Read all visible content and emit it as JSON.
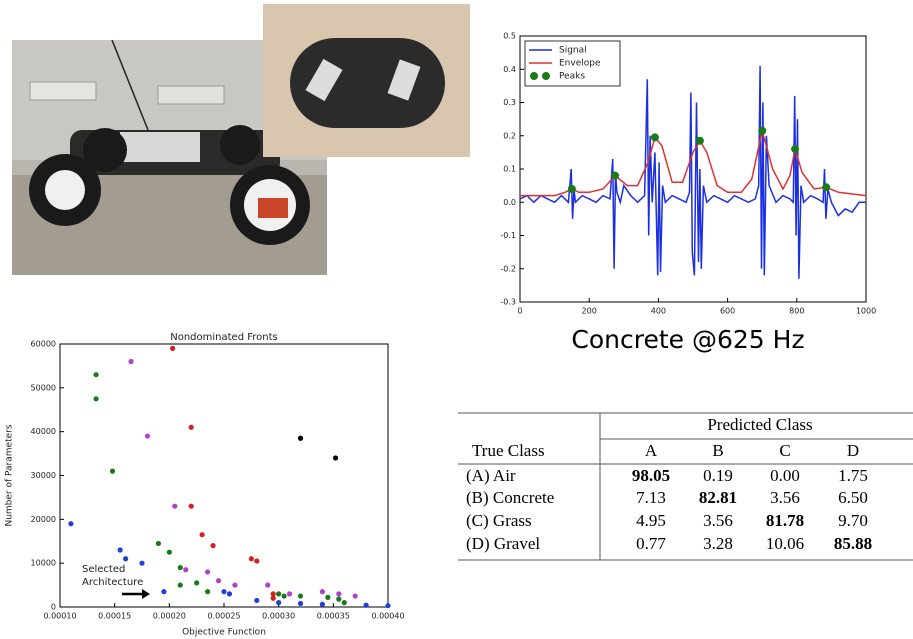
{
  "chart_data": [
    {
      "type": "line",
      "xlim": [
        0,
        1000
      ],
      "xticks": [
        0,
        200,
        400,
        600,
        800,
        1000
      ],
      "ylim": [
        -0.3,
        0.5
      ],
      "yticks": [
        -0.3,
        -0.2,
        -0.1,
        {
          "value": 0,
          "label": "0.0"
        },
        0.1,
        0.2,
        0.3,
        0.4,
        0.5
      ],
      "legend": "upper left",
      "series": [
        {
          "name": "Signal",
          "type": "line",
          "color": "#1c2fe0",
          "x": [
            0,
            20,
            40,
            60,
            80,
            100,
            120,
            140,
            148,
            152,
            156,
            160,
            180,
            200,
            220,
            240,
            260,
            268,
            272,
            276,
            280,
            290,
            300,
            320,
            340,
            360,
            368,
            372,
            376,
            382,
            390,
            398,
            402,
            406,
            412,
            420,
            440,
            460,
            480,
            490,
            494,
            498,
            504,
            510,
            516,
            520,
            524,
            530,
            540,
            560,
            580,
            600,
            620,
            640,
            660,
            680,
            690,
            694,
            698,
            702,
            706,
            712,
            720,
            740,
            760,
            780,
            790,
            794,
            798,
            802,
            806,
            812,
            820,
            840,
            860,
            876,
            880,
            884,
            890,
            900,
            920,
            940,
            960,
            980,
            1000
          ],
          "values": [
            0.01,
            0.02,
            0.0,
            0.02,
            0.01,
            0.0,
            0.02,
            0.0,
            0.1,
            -0.05,
            0.04,
            0.0,
            0.02,
            0.01,
            0.0,
            0.02,
            0.01,
            0.13,
            -0.2,
            0.09,
            0.03,
            0.0,
            0.05,
            0.02,
            0.0,
            0.02,
            0.37,
            -0.1,
            0.2,
            0.0,
            0.15,
            -0.22,
            0.12,
            -0.21,
            0.05,
            0.0,
            0.02,
            0.01,
            0.0,
            0.03,
            0.33,
            -0.15,
            -0.22,
            0.3,
            -0.18,
            0.1,
            -0.2,
            0.05,
            0.0,
            0.02,
            0.01,
            0.0,
            0.02,
            0.01,
            0.0,
            0.01,
            0.05,
            0.41,
            -0.2,
            0.3,
            -0.22,
            0.2,
            0.05,
            0.0,
            0.02,
            0.01,
            0.0,
            0.32,
            -0.1,
            0.25,
            -0.23,
            0.05,
            0.0,
            0.02,
            0.01,
            0.0,
            0.1,
            -0.05,
            0.04,
            0.0,
            -0.04,
            -0.02,
            -0.03,
            0.0,
            0.0
          ]
        },
        {
          "name": "Envelope",
          "type": "line",
          "color": "#e03030",
          "x": [
            0,
            50,
            100,
            130,
            150,
            170,
            200,
            240,
            275,
            310,
            340,
            370,
            390,
            410,
            440,
            470,
            500,
            520,
            540,
            570,
            600,
            640,
            670,
            700,
            730,
            760,
            780,
            795,
            815,
            850,
            885,
            920,
            1000
          ],
          "values": [
            0.02,
            0.02,
            0.02,
            0.03,
            0.04,
            0.03,
            0.03,
            0.04,
            0.08,
            0.05,
            0.05,
            0.12,
            0.195,
            0.17,
            0.06,
            0.06,
            0.15,
            0.185,
            0.15,
            0.05,
            0.03,
            0.03,
            0.07,
            0.215,
            0.1,
            0.04,
            0.08,
            0.16,
            0.09,
            0.04,
            0.045,
            0.03,
            0.02
          ]
        },
        {
          "name": "Peaks",
          "type": "scatter",
          "color": "#1a7a1a",
          "x": [
            150,
            275,
            390,
            520,
            700,
            795,
            885
          ],
          "values": [
            0.04,
            0.08,
            0.195,
            0.185,
            0.215,
            0.16,
            0.045
          ]
        }
      ]
    },
    {
      "type": "scatter",
      "title": "Nondominated Fronts",
      "x_label": "Objective Function",
      "y_label": "Number of Parameters",
      "xlim": [
        0.0001,
        0.0004
      ],
      "xticks": [
        {
          "value": 0.0001,
          "label": "0.00010"
        },
        {
          "value": 0.00015,
          "label": "0.00015"
        },
        {
          "value": 0.0002,
          "label": "0.00020"
        },
        {
          "value": 0.00025,
          "label": "0.00025"
        },
        {
          "value": 0.0003,
          "label": "0.00030"
        },
        {
          "value": 0.00035,
          "label": "0.00035"
        },
        {
          "value": 0.0004,
          "label": "0.00040"
        }
      ],
      "ylim": [
        0,
        60000
      ],
      "yticks": [
        0,
        10000,
        20000,
        30000,
        40000,
        50000,
        60000
      ],
      "annotation": [
        "Selected",
        "Architecture"
      ],
      "series": [
        {
          "color": "#1f3fd6",
          "x": [
            0.00011,
            0.000155,
            0.00016,
            0.000175,
            0.000195,
            0.00025,
            0.000255,
            0.00028,
            0.0003,
            0.00032,
            0.00034,
            0.00038,
            0.0004
          ],
          "values": [
            19000,
            13000,
            11000,
            10000,
            3500,
            3500,
            3000,
            1500,
            1000,
            800,
            600,
            400,
            300
          ]
        },
        {
          "color": "#1a7a1a",
          "x": [
            0.000133,
            0.000133,
            0.000148,
            0.00019,
            0.0002,
            0.00021,
            0.000225,
            0.00021,
            0.000235,
            0.0003,
            0.000305,
            0.00032,
            0.000345,
            0.000355,
            0.00036
          ],
          "values": [
            53000,
            47500,
            31000,
            14500,
            12500,
            9000,
            5500,
            5000,
            3500,
            3000,
            2500,
            2500,
            2200,
            1800,
            1000
          ]
        },
        {
          "color": "#b040c8",
          "x": [
            0.000165,
            0.00018,
            0.000205,
            0.000215,
            0.000235,
            0.000245,
            0.00026,
            0.00029,
            0.00031,
            0.00034,
            0.000355,
            0.00037
          ],
          "values": [
            56000,
            39000,
            23000,
            8500,
            8000,
            6000,
            5000,
            5000,
            3000,
            3500,
            3000,
            2500
          ]
        },
        {
          "color": "#d42020",
          "x": [
            0.000203,
            0.00022,
            0.00022,
            0.00023,
            0.00024,
            0.000275,
            0.00028,
            0.000295,
            0.000295
          ],
          "values": [
            59000,
            41000,
            23000,
            16500,
            14000,
            11000,
            10500,
            3000,
            2000
          ]
        },
        {
          "color": "#000000",
          "x": [
            0.00032,
            0.000352
          ],
          "values": [
            38500,
            34000
          ]
        }
      ]
    }
  ],
  "caption": "Concrete @625 Hz",
  "table": {
    "corner_header": "True Class",
    "group_header": "Predicted Class",
    "columns": [
      "A",
      "B",
      "C",
      "D"
    ],
    "rows": [
      [
        "(A) Air",
        "98.05",
        "0.19",
        "0.00",
        "1.75"
      ],
      [
        "(B) Concrete",
        "7.13",
        "82.81",
        "3.56",
        "6.50"
      ],
      [
        "(C) Grass",
        "4.95",
        "3.56",
        "81.78",
        "9.70"
      ],
      [
        "(D) Gravel",
        "0.77",
        "3.28",
        "10.06",
        "85.88"
      ]
    ]
  }
}
